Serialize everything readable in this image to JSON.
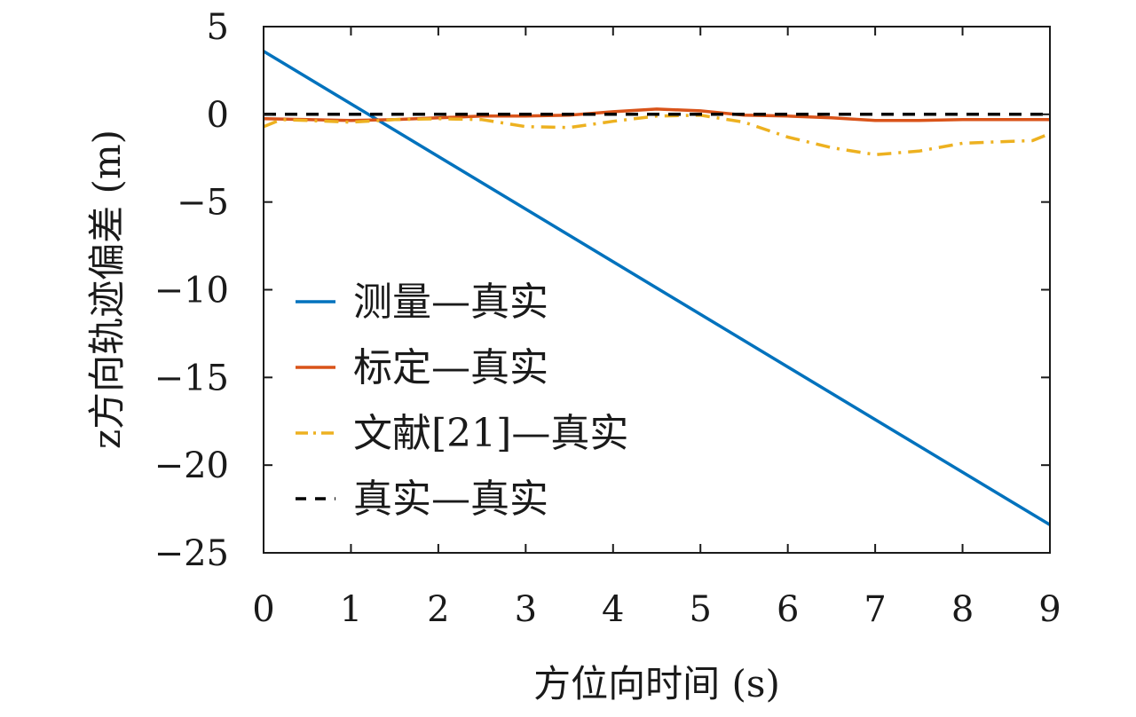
{
  "chart_data": {
    "type": "line",
    "title": "",
    "xlabel": "方位向时间 (s)",
    "ylabel": "z方向轨迹偏差 (m)",
    "xlim": [
      0,
      9
    ],
    "ylim": [
      -25,
      5
    ],
    "xticks": [
      0,
      1,
      2,
      3,
      4,
      5,
      6,
      7,
      8,
      9
    ],
    "yticks": [
      5,
      0,
      -5,
      -10,
      -15,
      -20,
      -25
    ],
    "xtick_labels": [
      "0",
      "1",
      "2",
      "3",
      "4",
      "5",
      "6",
      "7",
      "8",
      "9"
    ],
    "ytick_labels": [
      "5",
      "0",
      "−5",
      "−10",
      "−15",
      "−20",
      "−25"
    ],
    "grid": false,
    "legend_position": "center-left",
    "series": [
      {
        "name": "测量—真实",
        "color": "#0072BD",
        "dash": "solid",
        "x": [
          0,
          9
        ],
        "y": [
          3.6,
          -23.4
        ]
      },
      {
        "name": "标定—真实",
        "color": "#D95319",
        "dash": "solid",
        "x": [
          0,
          0.5,
          1.0,
          1.5,
          2.0,
          2.5,
          3.0,
          3.5,
          4.0,
          4.5,
          5.0,
          5.5,
          6.0,
          6.5,
          7.0,
          7.5,
          8.0,
          8.5,
          9.0
        ],
        "y": [
          -0.25,
          -0.3,
          -0.35,
          -0.3,
          -0.2,
          -0.1,
          -0.1,
          -0.05,
          0.15,
          0.3,
          0.2,
          -0.05,
          -0.1,
          -0.2,
          -0.35,
          -0.35,
          -0.3,
          -0.3,
          -0.3
        ]
      },
      {
        "name": "文献[21]—真实",
        "color": "#EDB120",
        "dash": "dashdot",
        "x": [
          0,
          0.2,
          0.5,
          1.0,
          1.5,
          2.0,
          2.5,
          3.0,
          3.5,
          4.0,
          4.5,
          5.0,
          5.5,
          6.0,
          6.5,
          7.0,
          7.5,
          8.0,
          8.5,
          8.8,
          9.0
        ],
        "y": [
          -0.7,
          -0.3,
          -0.35,
          -0.45,
          -0.3,
          -0.25,
          -0.3,
          -0.7,
          -0.75,
          -0.4,
          -0.1,
          -0.05,
          -0.45,
          -1.3,
          -1.9,
          -2.3,
          -2.1,
          -1.65,
          -1.55,
          -1.5,
          -1.1
        ]
      },
      {
        "name": "真实—真实",
        "color": "#000000",
        "dash": "dashed",
        "x": [
          0,
          9
        ],
        "y": [
          0,
          0
        ]
      }
    ]
  }
}
